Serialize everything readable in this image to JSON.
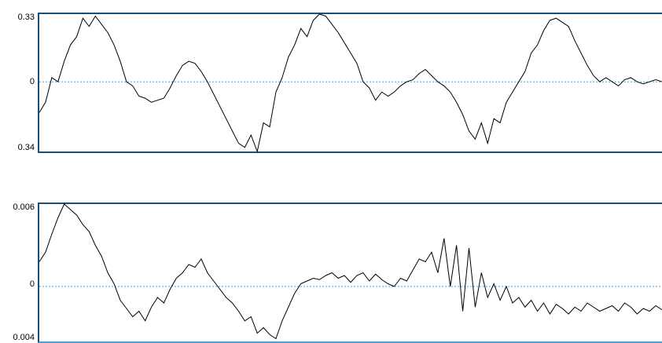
{
  "panels": [
    {
      "id": "top",
      "ymax": 0.33,
      "ymin": -0.34,
      "labels": {
        "top": "0.33",
        "zero": "0",
        "bottom": "0.34"
      },
      "colors": {
        "trace": "#000000",
        "zero_line": "#3aa7d8",
        "frame": "#1a4f7a"
      }
    },
    {
      "id": "bottom",
      "ymax": 0.006,
      "ymin": -0.004,
      "labels": {
        "top": "0.006",
        "zero": "0",
        "bottom": "0.004"
      },
      "colors": {
        "trace": "#000000",
        "zero_line": "#3aa7d8",
        "frame": "#1a4f7a"
      }
    }
  ],
  "chart_data": [
    {
      "type": "line",
      "ylim": [
        -0.34,
        0.33
      ],
      "x": [
        0,
        1,
        2,
        3,
        4,
        5,
        6,
        7,
        8,
        9,
        10,
        11,
        12,
        13,
        14,
        15,
        16,
        17,
        18,
        19,
        20,
        21,
        22,
        23,
        24,
        25,
        26,
        27,
        28,
        29,
        30,
        31,
        32,
        33,
        34,
        35,
        36,
        37,
        38,
        39,
        40,
        41,
        42,
        43,
        44,
        45,
        46,
        47,
        48,
        49,
        50,
        51,
        52,
        53,
        54,
        55,
        56,
        57,
        58,
        59,
        60,
        61,
        62,
        63,
        64,
        65,
        66,
        67,
        68,
        69,
        70,
        71,
        72,
        73,
        74,
        75,
        76,
        77,
        78,
        79,
        80,
        81,
        82,
        83,
        84,
        85,
        86,
        87,
        88,
        89,
        90,
        91,
        92,
        93,
        94,
        95,
        96,
        97,
        98,
        99,
        100
      ],
      "series": [
        {
          "values": [
            -0.15,
            -0.1,
            0.02,
            0.0,
            0.1,
            0.18,
            0.22,
            0.31,
            0.27,
            0.32,
            0.28,
            0.24,
            0.18,
            0.1,
            0.0,
            -0.02,
            -0.07,
            -0.08,
            -0.1,
            -0.09,
            -0.08,
            -0.03,
            0.03,
            0.08,
            0.1,
            0.09,
            0.05,
            0.0,
            -0.06,
            -0.12,
            -0.18,
            -0.24,
            -0.3,
            -0.32,
            -0.26,
            -0.34,
            -0.2,
            -0.22,
            -0.05,
            0.02,
            0.12,
            0.18,
            0.26,
            0.22,
            0.3,
            0.33,
            0.32,
            0.28,
            0.24,
            0.19,
            0.14,
            0.09,
            0.0,
            -0.03,
            -0.09,
            -0.05,
            -0.07,
            -0.05,
            -0.02,
            0.0,
            0.01,
            0.04,
            0.06,
            0.03,
            0.0,
            -0.02,
            -0.05,
            -0.1,
            -0.16,
            -0.24,
            -0.28,
            -0.2,
            -0.3,
            -0.18,
            -0.2,
            -0.1,
            -0.05,
            0.0,
            0.05,
            0.14,
            0.18,
            0.25,
            0.3,
            0.31,
            0.29,
            0.27,
            0.2,
            0.14,
            0.08,
            0.03,
            0.0,
            0.02,
            0.0,
            -0.02,
            0.01,
            0.02,
            0.0,
            -0.01,
            0.0,
            0.01,
            0.0
          ]
        }
      ]
    },
    {
      "type": "line",
      "ylim": [
        -0.004,
        0.006
      ],
      "x": [
        0,
        1,
        2,
        3,
        4,
        5,
        6,
        7,
        8,
        9,
        10,
        11,
        12,
        13,
        14,
        15,
        16,
        17,
        18,
        19,
        20,
        21,
        22,
        23,
        24,
        25,
        26,
        27,
        28,
        29,
        30,
        31,
        32,
        33,
        34,
        35,
        36,
        37,
        38,
        39,
        40,
        41,
        42,
        43,
        44,
        45,
        46,
        47,
        48,
        49,
        50,
        51,
        52,
        53,
        54,
        55,
        56,
        57,
        58,
        59,
        60,
        61,
        62,
        63,
        64,
        65,
        66,
        67,
        68,
        69,
        70,
        71,
        72,
        73,
        74,
        75,
        76,
        77,
        78,
        79,
        80,
        81,
        82,
        83,
        84,
        85,
        86,
        87,
        88,
        89,
        90,
        91,
        92,
        93,
        94,
        95,
        96,
        97,
        98,
        99,
        100
      ],
      "series": [
        {
          "values": [
            0.0018,
            0.0025,
            0.0038,
            0.005,
            0.006,
            0.0056,
            0.0052,
            0.0045,
            0.004,
            0.003,
            0.0022,
            0.001,
            0.0002,
            -0.001,
            -0.0016,
            -0.0022,
            -0.0018,
            -0.0025,
            -0.0015,
            -0.0008,
            -0.0012,
            -0.0002,
            0.0006,
            0.001,
            0.0016,
            0.0014,
            0.002,
            0.001,
            0.0004,
            -0.0002,
            -0.0008,
            -0.0012,
            -0.0018,
            -0.0025,
            -0.0022,
            -0.0034,
            -0.003,
            -0.0035,
            -0.0038,
            -0.0025,
            -0.0015,
            -0.0005,
            0.0002,
            0.0004,
            0.0006,
            0.0005,
            0.0008,
            0.001,
            0.0006,
            0.0008,
            0.0003,
            0.0008,
            0.001,
            0.0004,
            0.0009,
            0.0005,
            0.0002,
            0.0,
            0.0006,
            0.0004,
            0.0012,
            0.002,
            0.0018,
            0.0025,
            0.001,
            0.0035,
            0.0,
            0.003,
            -0.0018,
            0.0028,
            -0.0015,
            0.001,
            -0.0008,
            0.0002,
            -0.001,
            0.0,
            -0.0012,
            -0.0008,
            -0.0015,
            -0.001,
            -0.0018,
            -0.0012,
            -0.002,
            -0.0013,
            -0.0016,
            -0.002,
            -0.0015,
            -0.0018,
            -0.0012,
            -0.0015,
            -0.0018,
            -0.0016,
            -0.0014,
            -0.0018,
            -0.0012,
            -0.0015,
            -0.002,
            -0.0016,
            -0.0018,
            -0.0014,
            -0.0017
          ]
        }
      ]
    }
  ]
}
